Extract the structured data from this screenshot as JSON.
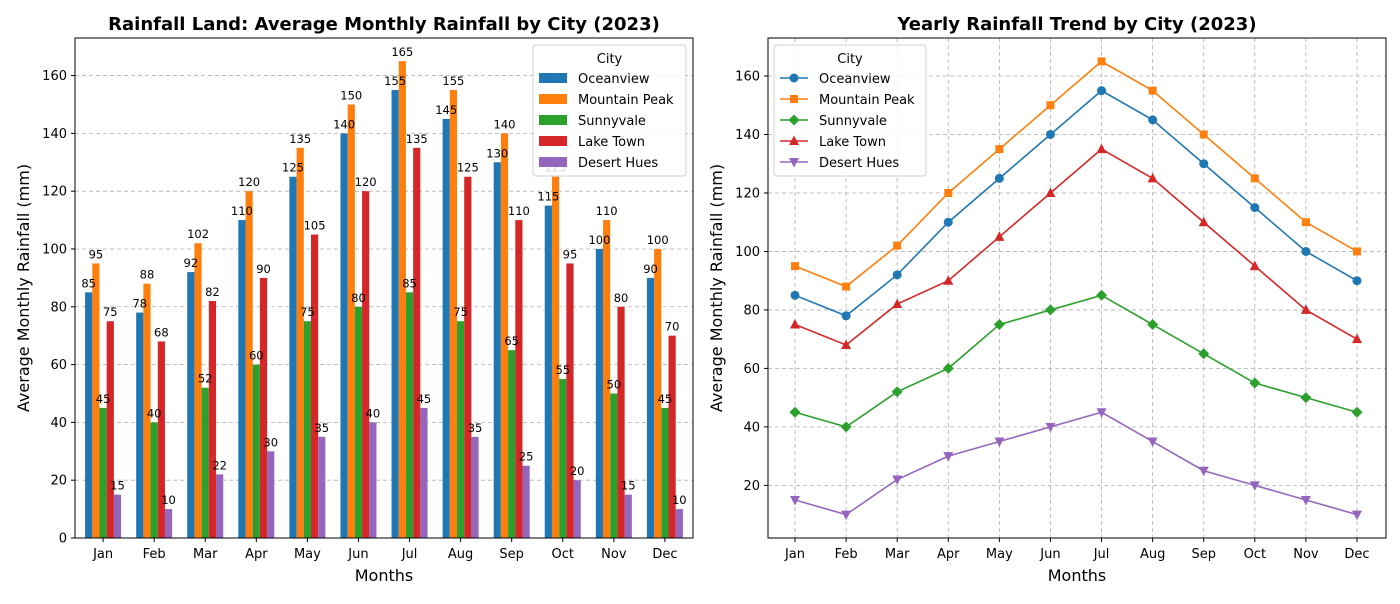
{
  "chart_data": [
    {
      "type": "bar",
      "title": "Rainfall Land: Average Monthly Rainfall by City (2023)",
      "xlabel": "Months",
      "ylabel": "Average Monthly Rainfall (mm)",
      "ylim": [
        0,
        173
      ],
      "yticks": [
        0,
        20,
        40,
        60,
        80,
        100,
        120,
        140,
        160
      ],
      "grid": "y-dashed",
      "legend_title": "City",
      "legend_position": "top-right",
      "categories": [
        "Jan",
        "Feb",
        "Mar",
        "Apr",
        "May",
        "Jun",
        "Jul",
        "Aug",
        "Sep",
        "Oct",
        "Nov",
        "Dec"
      ],
      "series": [
        {
          "name": "Oceanview",
          "color": "#1f77b4",
          "values": [
            85,
            78,
            92,
            110,
            125,
            140,
            155,
            145,
            130,
            115,
            100,
            90
          ]
        },
        {
          "name": "Mountain Peak",
          "color": "#ff7f0e",
          "values": [
            95,
            88,
            102,
            120,
            135,
            150,
            165,
            155,
            140,
            125,
            110,
            100
          ]
        },
        {
          "name": "Sunnyvale",
          "color": "#2ca02c",
          "values": [
            45,
            40,
            52,
            60,
            75,
            80,
            85,
            75,
            65,
            55,
            50,
            45
          ]
        },
        {
          "name": "Lake Town",
          "color": "#d62728",
          "values": [
            75,
            68,
            82,
            90,
            105,
            120,
            135,
            125,
            110,
            95,
            80,
            70
          ]
        },
        {
          "name": "Desert Hues",
          "color": "#9467bd",
          "values": [
            15,
            10,
            22,
            30,
            35,
            40,
            45,
            35,
            25,
            20,
            15,
            10
          ]
        }
      ]
    },
    {
      "type": "line",
      "title": "Yearly Rainfall Trend by City (2023)",
      "xlabel": "Months",
      "ylabel": "Average Monthly Rainfall (mm)",
      "ylim": [
        2,
        173
      ],
      "yticks": [
        20,
        40,
        60,
        80,
        100,
        120,
        140,
        160
      ],
      "grid": "both-dashed",
      "legend_title": "City",
      "legend_position": "top-left",
      "categories": [
        "Jan",
        "Feb",
        "Mar",
        "Apr",
        "May",
        "Jun",
        "Jul",
        "Aug",
        "Sep",
        "Oct",
        "Nov",
        "Dec"
      ],
      "series": [
        {
          "name": "Oceanview",
          "color": "#1f77b4",
          "marker": "circle",
          "values": [
            85,
            78,
            92,
            110,
            125,
            140,
            155,
            145,
            130,
            115,
            100,
            90
          ]
        },
        {
          "name": "Mountain Peak",
          "color": "#ff7f0e",
          "marker": "square",
          "values": [
            95,
            88,
            102,
            120,
            135,
            150,
            165,
            155,
            140,
            125,
            110,
            100
          ]
        },
        {
          "name": "Sunnyvale",
          "color": "#2ca02c",
          "marker": "diamond",
          "values": [
            45,
            40,
            52,
            60,
            75,
            80,
            85,
            75,
            65,
            55,
            50,
            45
          ]
        },
        {
          "name": "Lake Town",
          "color": "#d62728",
          "marker": "triangle-up",
          "values": [
            75,
            68,
            82,
            90,
            105,
            120,
            135,
            125,
            110,
            95,
            80,
            70
          ]
        },
        {
          "name": "Desert Hues",
          "color": "#9467bd",
          "marker": "triangle-down",
          "values": [
            15,
            10,
            22,
            30,
            35,
            40,
            45,
            35,
            25,
            20,
            15,
            10
          ]
        }
      ]
    }
  ]
}
